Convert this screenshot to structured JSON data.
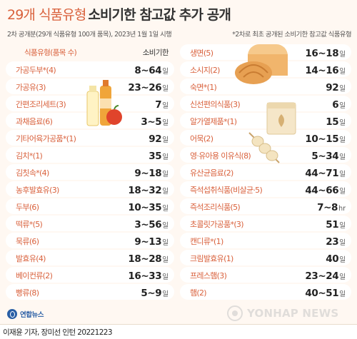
{
  "title": {
    "light": "29개 식품유형",
    "bold": "소비기한 참고값 추가 공개"
  },
  "subtitle_left": "2차 공개분(29개 식품유형 100개 품목), 2023년 1월 1일 시행",
  "subtitle_right": "*2차로 최초 공개된 소비기한 참고값 식품유형",
  "headers": {
    "type": "식품유형(품목 수)",
    "period": "소비기한"
  },
  "left_rows": [
    {
      "name": "가공두부*(4)",
      "value": "8~64",
      "unit": "일"
    },
    {
      "name": "가공유(3)",
      "value": "23~26",
      "unit": "일"
    },
    {
      "name": "간편조리세트(3)",
      "value": "7",
      "unit": "일"
    },
    {
      "name": "과채음료(6)",
      "value": "3~5",
      "unit": "일"
    },
    {
      "name": "기타어육가공품*(1)",
      "value": "92",
      "unit": "일"
    },
    {
      "name": "김치*(1)",
      "value": "35",
      "unit": "일"
    },
    {
      "name": "김칫속*(4)",
      "value": "9~18",
      "unit": "일"
    },
    {
      "name": "농후발효유(3)",
      "value": "18~32",
      "unit": "일"
    },
    {
      "name": "두부(6)",
      "value": "10~35",
      "unit": "일"
    },
    {
      "name": "떡류*(5)",
      "value": "3~56",
      "unit": "일"
    },
    {
      "name": "묵류(6)",
      "value": "9~13",
      "unit": "일"
    },
    {
      "name": "발효유(4)",
      "value": "18~28",
      "unit": "일"
    },
    {
      "name": "베이컨류(2)",
      "value": "16~33",
      "unit": "일"
    },
    {
      "name": "빵류(8)",
      "value": "5~9",
      "unit": "일"
    }
  ],
  "right_rows": [
    {
      "name": "생면(5)",
      "value": "16~18",
      "unit": "일"
    },
    {
      "name": "소시지(2)",
      "value": "14~16",
      "unit": "일"
    },
    {
      "name": "숙면*(1)",
      "value": "92",
      "unit": "일"
    },
    {
      "name": "신선편의식품(3)",
      "value": "6",
      "unit": "일"
    },
    {
      "name": "알가열제품*(1)",
      "value": "15",
      "unit": "일"
    },
    {
      "name": "어묵(2)",
      "value": "10~15",
      "unit": "일"
    },
    {
      "name": "영·유아용 이유식(8)",
      "value": "5~34",
      "unit": "일"
    },
    {
      "name": "유산균음료(2)",
      "value": "44~71",
      "unit": "일"
    },
    {
      "name": "즉석섭취식품(비살균·5)",
      "value": "44~66",
      "unit": "일"
    },
    {
      "name": "즉석조리식품(5)",
      "value": "7~8",
      "unit": "hr"
    },
    {
      "name": "초콜릿가공품*(3)",
      "value": "51",
      "unit": "일"
    },
    {
      "name": "캔디류*(1)",
      "value": "23",
      "unit": "일"
    },
    {
      "name": "크림발효유(1)",
      "value": "40",
      "unit": "일"
    },
    {
      "name": "프레스햄(3)",
      "value": "23~24",
      "unit": "일"
    },
    {
      "name": "햄(2)",
      "value": "40~51",
      "unit": "일"
    }
  ],
  "logo_text": "연합뉴스",
  "watermark_text": "YONHAP NEWS",
  "credit": "이재윤 기자, 장미선 인턴  20221223",
  "icons": [
    "bread-icon",
    "drinks-icon",
    "powder-bag-icon",
    "sausage-skewer-icon"
  ],
  "colors": {
    "accent": "#d9613c",
    "background": "#fff8f2",
    "row": "#ffffff",
    "logo": "#2a5fa5"
  }
}
